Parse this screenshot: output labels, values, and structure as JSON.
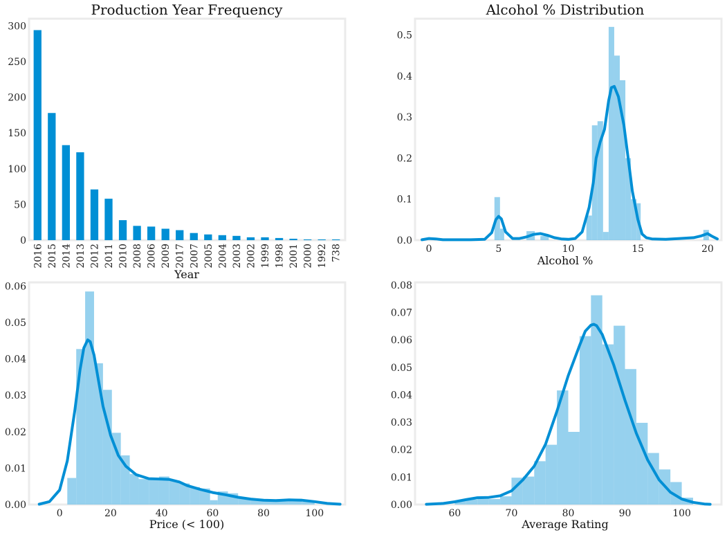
{
  "colors": {
    "primary": "#008fd5",
    "histogram": "#7cc6ea",
    "frame": "#ebebeb"
  },
  "chart_data": [
    {
      "type": "bar",
      "title": "Production Year Frequency",
      "xlabel": "Year",
      "ylabel": "",
      "ylim": [
        0,
        310
      ],
      "yticks": [
        0,
        50,
        100,
        150,
        200,
        250,
        300
      ],
      "categories": [
        "2016",
        "2015",
        "2014",
        "2013",
        "2012",
        "2011",
        "2010",
        "2008",
        "2006",
        "2009",
        "2017",
        "2007",
        "2005",
        "2004",
        "2003",
        "2002",
        "1999",
        "1998",
        "2001",
        "2000",
        "1992",
        "738"
      ],
      "values": [
        294,
        178,
        133,
        123,
        71,
        58,
        28,
        20,
        19,
        16,
        14,
        10,
        8,
        7,
        6,
        4,
        4,
        3,
        2,
        1,
        1,
        1
      ],
      "grid": false
    },
    {
      "type": "area",
      "title": "Alcohol % Distribution",
      "xlabel": "Alcohol %",
      "ylabel": "",
      "xlim": [
        -1,
        21
      ],
      "ylim": [
        0,
        0.54
      ],
      "xticks": [
        0,
        5,
        10,
        15,
        20
      ],
      "yticks": [
        0.0,
        0.1,
        0.2,
        0.3,
        0.4,
        0.5
      ],
      "tick_decimals": 1,
      "histogram": {
        "bins": [
          [
            4.7,
            5.1,
            0.105
          ],
          [
            5.1,
            5.4,
            0.028
          ],
          [
            7.0,
            7.6,
            0.022
          ],
          [
            8.0,
            8.6,
            0.01
          ],
          [
            11.3,
            11.7,
            0.06
          ],
          [
            11.7,
            12.1,
            0.28
          ],
          [
            12.1,
            12.5,
            0.29
          ],
          [
            12.5,
            12.9,
            0.02
          ],
          [
            12.9,
            13.3,
            0.52
          ],
          [
            13.3,
            13.7,
            0.45
          ],
          [
            13.7,
            14.1,
            0.39
          ],
          [
            14.1,
            14.5,
            0.2
          ],
          [
            14.5,
            14.9,
            0.1
          ],
          [
            14.9,
            15.2,
            0.09
          ],
          [
            19.7,
            20.1,
            0.025
          ]
        ]
      },
      "kde": {
        "x": [
          -0.5,
          0,
          0.5,
          1,
          2,
          3,
          4,
          4.5,
          4.8,
          5,
          5.2,
          5.5,
          6,
          6.5,
          7,
          7.5,
          8,
          8.5,
          9,
          9.5,
          10,
          10.5,
          11,
          11.5,
          11.8,
          12,
          12.3,
          12.6,
          12.9,
          13.1,
          13.3,
          13.6,
          14,
          14.3,
          14.6,
          15,
          15.3,
          15.6,
          16,
          17,
          18,
          19,
          19.5,
          20,
          20.3,
          20.7
        ],
        "y": [
          0.001,
          0.004,
          0.003,
          0.001,
          0.001,
          0.001,
          0.002,
          0.018,
          0.05,
          0.058,
          0.052,
          0.02,
          0.004,
          0.004,
          0.008,
          0.014,
          0.016,
          0.012,
          0.006,
          0.003,
          0.002,
          0.004,
          0.02,
          0.08,
          0.14,
          0.2,
          0.24,
          0.27,
          0.34,
          0.372,
          0.375,
          0.35,
          0.28,
          0.2,
          0.12,
          0.05,
          0.015,
          0.006,
          0.003,
          0.002,
          0.004,
          0.006,
          0.01,
          0.016,
          0.01,
          0.003
        ]
      }
    },
    {
      "type": "area",
      "title": "",
      "xlabel": "Price (< 100)",
      "ylabel": "",
      "xlim": [
        -12,
        112
      ],
      "ylim": [
        0,
        0.061
      ],
      "xticks": [
        0,
        20,
        40,
        60,
        80,
        100
      ],
      "yticks": [
        0.0,
        0.01,
        0.02,
        0.03,
        0.04,
        0.05,
        0.06
      ],
      "tick_decimals": 2,
      "histogram": {
        "bins": [
          [
            3,
            6.5,
            0.0073
          ],
          [
            6.5,
            10,
            0.0427
          ],
          [
            10,
            13.5,
            0.0585
          ],
          [
            13.5,
            17,
            0.0388
          ],
          [
            17,
            20.5,
            0.0315
          ],
          [
            20.5,
            24,
            0.0197
          ],
          [
            24,
            27.5,
            0.0135
          ],
          [
            27.5,
            31,
            0.0084
          ],
          [
            31,
            35,
            0.007
          ],
          [
            35,
            39,
            0.0069
          ],
          [
            39,
            43,
            0.0077
          ],
          [
            43,
            47,
            0.0066
          ],
          [
            47,
            51,
            0.0058
          ],
          [
            51,
            55,
            0.0048
          ],
          [
            55,
            59,
            0.0044
          ],
          [
            59,
            62,
            0.0012
          ],
          [
            62,
            66,
            0.0036
          ],
          [
            66,
            70,
            0.0031
          ],
          [
            70,
            75,
            0.0018
          ],
          [
            75,
            80,
            0.0015
          ],
          [
            80,
            85,
            0.0013
          ],
          [
            85,
            90,
            0.0015
          ],
          [
            90,
            95,
            0.0016
          ],
          [
            95,
            100,
            0.0008
          ]
        ]
      },
      "kde": {
        "x": [
          -8,
          -4,
          0,
          3,
          6,
          8,
          9.5,
          11,
          12,
          13.5,
          15,
          17,
          20,
          23,
          26,
          30,
          35,
          40,
          43,
          47,
          50,
          55,
          60,
          65,
          70,
          75,
          80,
          85,
          90,
          95,
          100,
          105,
          110
        ],
        "y": [
          0.0001,
          0.0008,
          0.004,
          0.012,
          0.026,
          0.037,
          0.043,
          0.0452,
          0.0447,
          0.041,
          0.035,
          0.027,
          0.019,
          0.0135,
          0.0105,
          0.0082,
          0.0071,
          0.007,
          0.0069,
          0.0062,
          0.0052,
          0.0042,
          0.0033,
          0.0027,
          0.002,
          0.0015,
          0.0012,
          0.0011,
          0.0013,
          0.0012,
          0.0008,
          0.0003,
          0.0001
        ]
      }
    },
    {
      "type": "area",
      "title": "",
      "xlabel": "Average Rating",
      "ylabel": "",
      "xlim": [
        53,
        107
      ],
      "ylim": [
        0,
        0.081
      ],
      "xticks": [
        60,
        70,
        80,
        90,
        100
      ],
      "yticks": [
        0.0,
        0.01,
        0.02,
        0.03,
        0.04,
        0.05,
        0.06,
        0.07,
        0.08
      ],
      "tick_decimals": 2,
      "histogram": {
        "bins": [
          [
            60,
            62,
            0.0015
          ],
          [
            62,
            64,
            0.0018
          ],
          [
            64,
            66,
            0.002
          ],
          [
            66,
            68,
            0.002
          ],
          [
            68,
            70,
            0.003
          ],
          [
            70,
            72,
            0.0098
          ],
          [
            72,
            74,
            0.0102
          ],
          [
            74,
            76,
            0.0158
          ],
          [
            76,
            78,
            0.0218
          ],
          [
            78,
            80,
            0.0416
          ],
          [
            80,
            82,
            0.0265
          ],
          [
            82,
            84,
            0.0614
          ],
          [
            84,
            86,
            0.0763
          ],
          [
            86,
            88,
            0.0584
          ],
          [
            88,
            90,
            0.0652
          ],
          [
            90,
            92,
            0.0494
          ],
          [
            92,
            94,
            0.0298
          ],
          [
            94,
            96,
            0.0188
          ],
          [
            96,
            98,
            0.0128
          ],
          [
            98,
            100,
            0.0082
          ],
          [
            100,
            102,
            0.0025
          ]
        ]
      },
      "kde": {
        "x": [
          55,
          58,
          60,
          62,
          64,
          66,
          68,
          70,
          72,
          74,
          76,
          78,
          80,
          82,
          83,
          84,
          84.5,
          85,
          86,
          88,
          90,
          92,
          94,
          96,
          98,
          100,
          102,
          104,
          105
        ],
        "y": [
          0.0001,
          0.0004,
          0.001,
          0.0018,
          0.0025,
          0.0026,
          0.0032,
          0.005,
          0.009,
          0.014,
          0.022,
          0.034,
          0.047,
          0.058,
          0.0632,
          0.0654,
          0.0657,
          0.0652,
          0.062,
          0.051,
          0.038,
          0.026,
          0.0162,
          0.009,
          0.0045,
          0.002,
          0.0008,
          0.0002,
          0.0001
        ]
      }
    }
  ]
}
